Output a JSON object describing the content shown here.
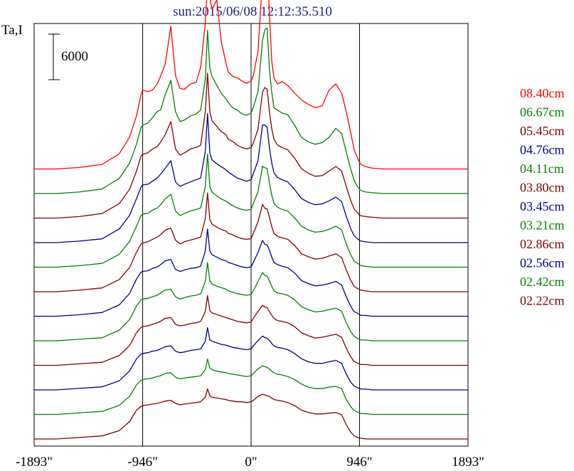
{
  "chart_data": {
    "type": "line",
    "title": "sun:2015/06/08 12:12:35.510",
    "ylabel": "Ta,I",
    "scale_bar_label": "6000",
    "scale_bar_value": 6000,
    "xlim": [
      -1893,
      1893
    ],
    "x_ticks": [
      {
        "value": -1893,
        "label": "-1893\""
      },
      {
        "value": -946,
        "label": "-946\""
      },
      {
        "value": 0,
        "label": "0\""
      },
      {
        "value": 946,
        "label": "946\""
      },
      {
        "value": 1893,
        "label": "1893\""
      }
    ],
    "vertical_lines": [
      -946,
      0,
      946
    ],
    "x": [
      -1893,
      -1700,
      -1500,
      -1300,
      -1150,
      -1060,
      -1000,
      -960,
      -946,
      -900,
      -860,
      -820,
      -790,
      -750,
      -700,
      -660,
      -620,
      -580,
      -530,
      -480,
      -440,
      -400,
      -380,
      -360,
      -340,
      -300,
      -260,
      -220,
      -200,
      -160,
      -120,
      -80,
      -40,
      0,
      20,
      60,
      100,
      120,
      140,
      160,
      180,
      200,
      230,
      270,
      320,
      380,
      440,
      500,
      560,
      620,
      680,
      740,
      790,
      830,
      870,
      900,
      930,
      946,
      960,
      1000,
      1060,
      1150,
      1300,
      1500,
      1700,
      1893
    ],
    "series": [
      {
        "name": "08.40cm",
        "color": "#ff0000",
        "values": [
          0,
          0,
          200,
          600,
          2000,
          4200,
          7000,
          9800,
          10400,
          10200,
          10400,
          11200,
          12200,
          13800,
          18800,
          12300,
          10600,
          10500,
          11200,
          11400,
          13400,
          19200,
          24300,
          22500,
          21000,
          22300,
          16800,
          14000,
          12800,
          12200,
          12000,
          11600,
          11300,
          11600,
          12300,
          15500,
          25100,
          27600,
          27400,
          20400,
          14300,
          12000,
          11200,
          11500,
          11000,
          10000,
          9100,
          8500,
          8100,
          8300,
          10400,
          11200,
          10000,
          7600,
          4700,
          2500,
          1400,
          900,
          600,
          300,
          100,
          0,
          0,
          0,
          0,
          0
        ]
      },
      {
        "name": "06.67cm",
        "color": "#008000",
        "values": [
          0,
          0,
          200,
          600,
          2000,
          4000,
          6500,
          8700,
          9000,
          9300,
          10000,
          10800,
          11000,
          13000,
          14900,
          10800,
          9500,
          9700,
          10200,
          10500,
          11000,
          15000,
          21500,
          16500,
          15400,
          14300,
          13200,
          12500,
          12000,
          11300,
          11000,
          10500,
          10300,
          10600,
          11400,
          13400,
          20200,
          21600,
          21800,
          16400,
          13400,
          11300,
          11000,
          10600,
          10400,
          9000,
          7400,
          6800,
          6500,
          6700,
          7400,
          8600,
          7900,
          5500,
          3200,
          1700,
          900,
          600,
          400,
          200,
          100,
          0,
          0,
          0,
          0,
          0
        ]
      },
      {
        "name": "05.45cm",
        "color": "#800000",
        "values": [
          0,
          0,
          200,
          600,
          1900,
          3800,
          6200,
          8200,
          8400,
          8600,
          9100,
          9400,
          10000,
          11000,
          12700,
          9100,
          8300,
          8600,
          9100,
          9300,
          9600,
          14000,
          19100,
          14000,
          12800,
          12100,
          11400,
          11000,
          10400,
          10100,
          9600,
          9300,
          9100,
          9300,
          9900,
          11700,
          16600,
          17200,
          17000,
          14000,
          11800,
          10400,
          9600,
          9300,
          9000,
          7900,
          6500,
          5900,
          5500,
          5600,
          6200,
          6800,
          6200,
          4200,
          2300,
          1200,
          700,
          400,
          300,
          200,
          100,
          0,
          0,
          0,
          0,
          0
        ]
      },
      {
        "name": "04.76cm",
        "color": "#00008b",
        "values": [
          0,
          0,
          200,
          500,
          1800,
          3600,
          5800,
          7300,
          7600,
          7700,
          8100,
          8500,
          9000,
          9800,
          10800,
          8000,
          7400,
          7700,
          8000,
          8300,
          8500,
          12000,
          17000,
          11800,
          10900,
          10400,
          10000,
          9600,
          9300,
          8900,
          8500,
          8300,
          8100,
          8300,
          9100,
          10800,
          15500,
          15500,
          15200,
          12500,
          10500,
          9200,
          8600,
          8300,
          8000,
          7000,
          5800,
          5300,
          5000,
          5100,
          5500,
          6000,
          5400,
          3500,
          1800,
          900,
          500,
          300,
          200,
          100,
          0,
          0,
          0,
          0,
          0,
          0
        ]
      },
      {
        "name": "04.11cm",
        "color": "#008000",
        "values": [
          0,
          0,
          200,
          500,
          1700,
          3400,
          5400,
          6800,
          7000,
          7100,
          7500,
          7800,
          8200,
          9000,
          9600,
          7400,
          6800,
          7100,
          7400,
          7600,
          7800,
          10600,
          14900,
          10600,
          9900,
          9400,
          9000,
          8700,
          8500,
          8100,
          7800,
          7600,
          7500,
          7600,
          8400,
          9900,
          13300,
          13100,
          13000,
          11100,
          9500,
          8400,
          7900,
          7600,
          7400,
          6500,
          5400,
          4900,
          4600,
          4700,
          5000,
          5400,
          4900,
          3100,
          1600,
          800,
          500,
          300,
          200,
          100,
          0,
          0,
          0,
          0,
          0,
          0
        ]
      },
      {
        "name": "03.80cm",
        "color": "#800000",
        "values": [
          0,
          0,
          200,
          500,
          1600,
          3200,
          5200,
          6300,
          6400,
          6600,
          6900,
          7200,
          7500,
          8100,
          8400,
          6800,
          6300,
          6600,
          6800,
          7000,
          7200,
          9600,
          13000,
          9500,
          8900,
          8500,
          8200,
          8000,
          7700,
          7500,
          7200,
          7000,
          6900,
          7000,
          7700,
          9200,
          11500,
          11000,
          10900,
          9800,
          8600,
          7700,
          7300,
          7100,
          6900,
          6100,
          5000,
          4600,
          4300,
          4400,
          4700,
          5000,
          4500,
          2900,
          1500,
          700,
          400,
          300,
          200,
          100,
          0,
          0,
          0,
          0,
          0,
          0
        ]
      },
      {
        "name": "03.45cm",
        "color": "#00008b",
        "values": [
          0,
          0,
          200,
          500,
          1500,
          3000,
          4900,
          5800,
          5900,
          6000,
          6300,
          6500,
          6800,
          7300,
          7500,
          6200,
          5900,
          6100,
          6300,
          6400,
          6600,
          8600,
          11500,
          8600,
          8100,
          7800,
          7500,
          7300,
          7100,
          6900,
          6700,
          6500,
          6400,
          6500,
          7100,
          8400,
          10000,
          9500,
          9400,
          8700,
          7800,
          7100,
          6800,
          6600,
          6400,
          5700,
          4700,
          4300,
          4000,
          4100,
          4300,
          4600,
          4100,
          2600,
          1300,
          600,
          400,
          200,
          100,
          100,
          0,
          0,
          0,
          0,
          0,
          0
        ]
      },
      {
        "name": "03.21cm",
        "color": "#008000",
        "values": [
          0,
          0,
          200,
          400,
          1400,
          2800,
          4600,
          5400,
          5500,
          5600,
          5800,
          6000,
          6300,
          6700,
          6800,
          5800,
          5500,
          5700,
          5900,
          6000,
          6200,
          7800,
          10300,
          7900,
          7500,
          7200,
          7000,
          6800,
          6600,
          6400,
          6200,
          6100,
          6000,
          6100,
          6600,
          7800,
          9000,
          8600,
          8500,
          7900,
          7200,
          6600,
          6300,
          6200,
          6000,
          5400,
          4500,
          4100,
          3800,
          3900,
          4100,
          4300,
          3900,
          2400,
          1200,
          600,
          300,
          200,
          100,
          100,
          0,
          0,
          0,
          0,
          0,
          0
        ]
      },
      {
        "name": "02.86cm",
        "color": "#800000",
        "values": [
          0,
          0,
          200,
          400,
          1300,
          2600,
          4300,
          5000,
          5100,
          5200,
          5400,
          5600,
          5800,
          6200,
          6300,
          5400,
          5200,
          5300,
          5500,
          5600,
          5800,
          7100,
          9200,
          7200,
          6900,
          6700,
          6500,
          6300,
          6200,
          6000,
          5800,
          5700,
          5600,
          5700,
          6200,
          7100,
          7900,
          7700,
          7600,
          7100,
          6600,
          6200,
          5900,
          5800,
          5600,
          5100,
          4300,
          3900,
          3600,
          3700,
          3900,
          4100,
          3700,
          2300,
          1100,
          500,
          300,
          200,
          100,
          100,
          0,
          0,
          0,
          0,
          0,
          0
        ]
      },
      {
        "name": "02.56cm",
        "color": "#00008b",
        "values": [
          0,
          0,
          200,
          400,
          1200,
          2500,
          4100,
          4700,
          4800,
          4900,
          5100,
          5200,
          5400,
          5700,
          5800,
          5100,
          4900,
          5000,
          5200,
          5300,
          5400,
          6400,
          8200,
          6600,
          6400,
          6200,
          6000,
          5900,
          5800,
          5600,
          5500,
          5400,
          5300,
          5400,
          5800,
          6500,
          7100,
          6900,
          6800,
          6500,
          6100,
          5800,
          5600,
          5500,
          5300,
          4800,
          4100,
          3700,
          3500,
          3500,
          3700,
          3900,
          3500,
          2100,
          1000,
          500,
          300,
          200,
          100,
          100,
          0,
          0,
          0,
          0,
          0,
          0
        ]
      },
      {
        "name": "02.42cm",
        "color": "#008000",
        "values": [
          0,
          0,
          200,
          400,
          1200,
          2400,
          3900,
          4500,
          4600,
          4700,
          4800,
          5000,
          5100,
          5400,
          5500,
          4900,
          4700,
          4800,
          4900,
          5000,
          5100,
          5900,
          7300,
          6100,
          5900,
          5700,
          5600,
          5500,
          5400,
          5300,
          5200,
          5100,
          5000,
          5100,
          5400,
          6000,
          6400,
          6300,
          6200,
          6000,
          5700,
          5500,
          5300,
          5200,
          5000,
          4600,
          4000,
          3600,
          3400,
          3400,
          3600,
          3700,
          3400,
          2000,
          1000,
          500,
          300,
          200,
          100,
          100,
          0,
          0,
          0,
          0,
          0,
          0
        ]
      },
      {
        "name": "02.22cm",
        "color": "#800000",
        "values": [
          0,
          0,
          200,
          400,
          1100,
          2300,
          3800,
          4300,
          4400,
          4500,
          4600,
          4700,
          4800,
          5000,
          5100,
          4700,
          4500,
          4600,
          4700,
          4800,
          4900,
          5500,
          6600,
          5700,
          5500,
          5400,
          5300,
          5200,
          5100,
          5000,
          4900,
          4900,
          4800,
          4900,
          5100,
          5600,
          5900,
          5800,
          5700,
          5600,
          5400,
          5200,
          5100,
          5000,
          4800,
          4400,
          3800,
          3500,
          3300,
          3300,
          3400,
          3500,
          3200,
          1900,
          900,
          400,
          200,
          100,
          100,
          0,
          0,
          0,
          0,
          0,
          0,
          0
        ]
      }
    ]
  }
}
